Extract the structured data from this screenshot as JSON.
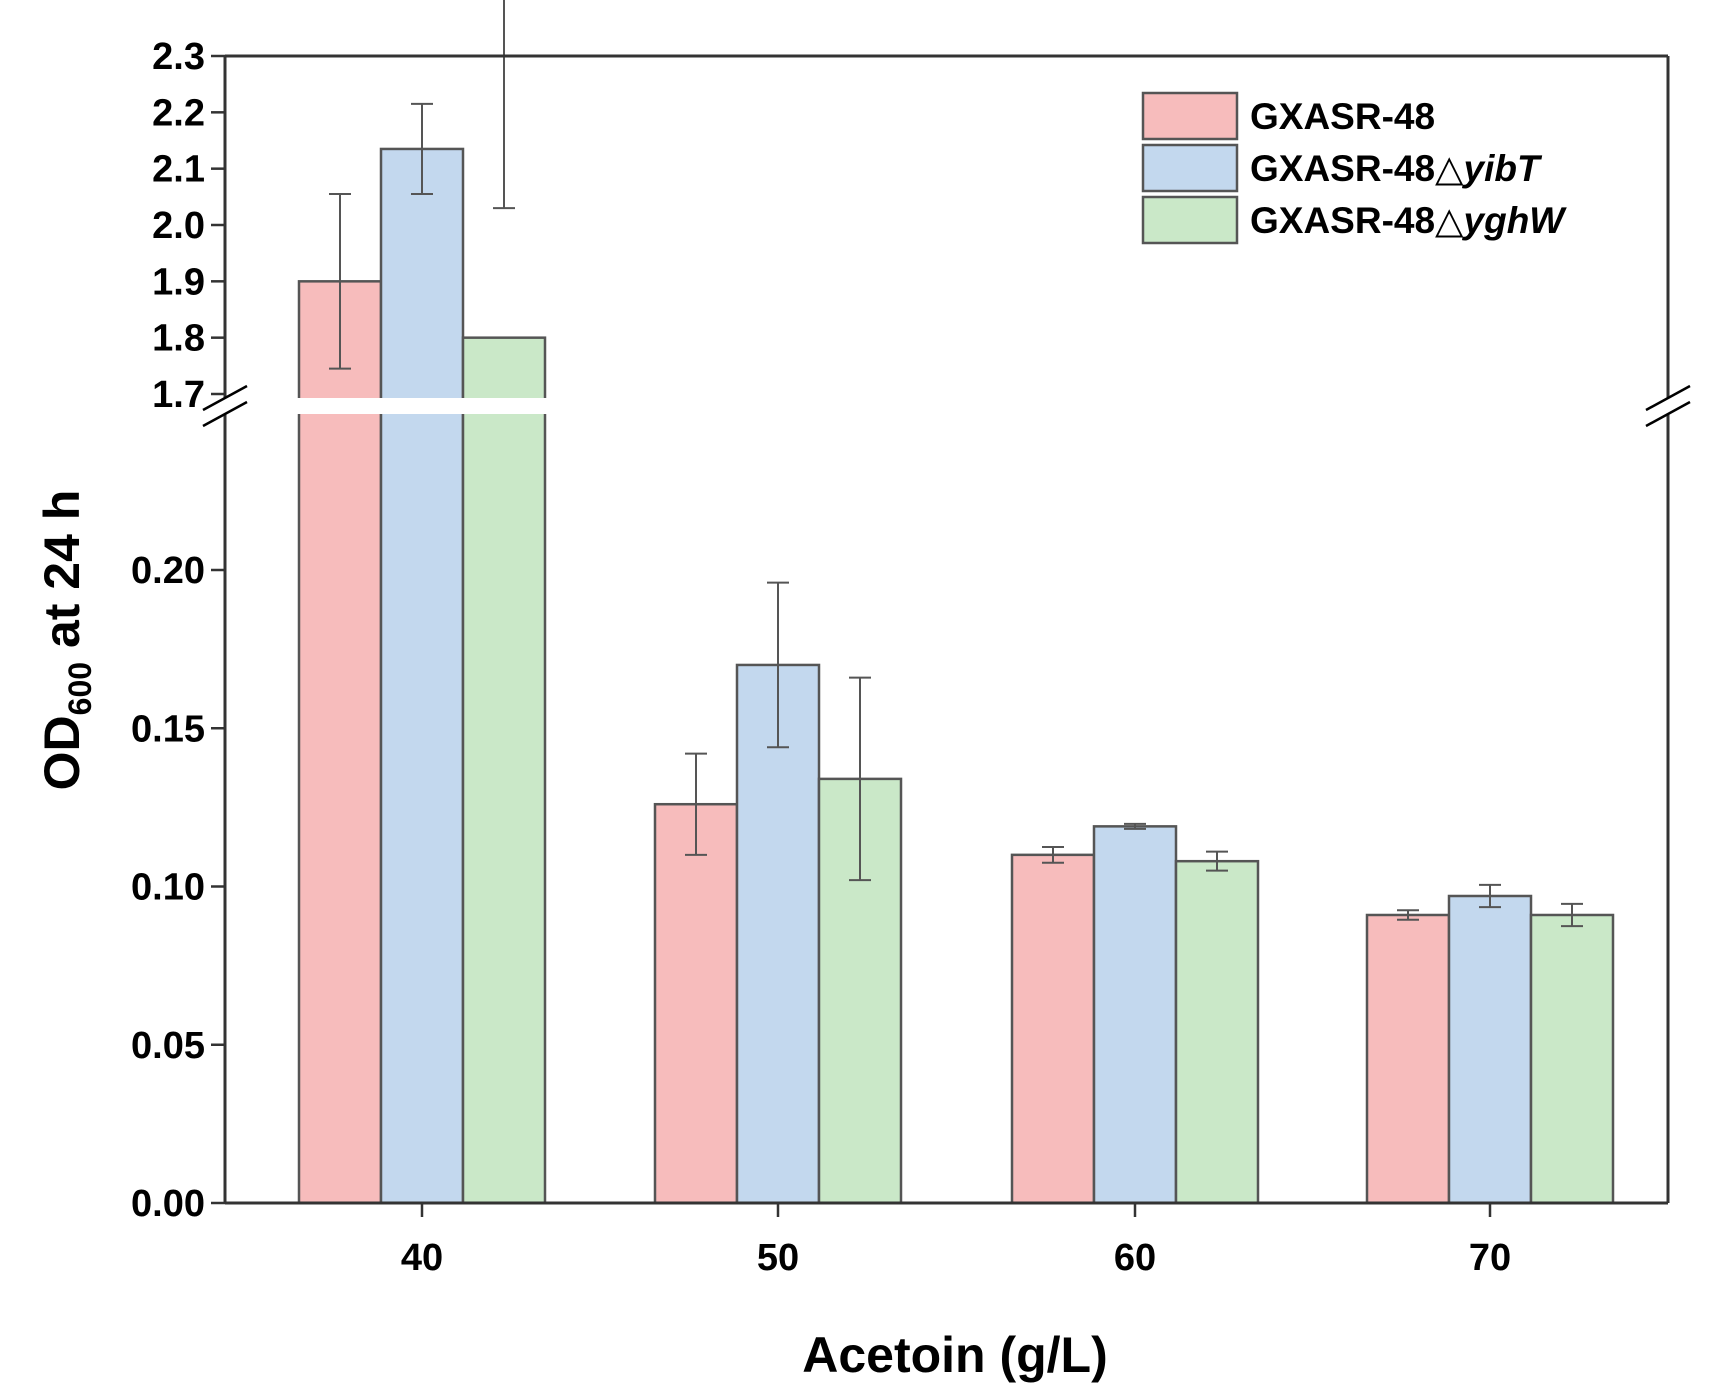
{
  "chart_data": {
    "type": "bar",
    "xlabel": "Acetoin (g/L)",
    "ylabel": {
      "base": "OD",
      "subscript": "600",
      "suffix": " at 24 h"
    },
    "categories": [
      "40",
      "50",
      "60",
      "70"
    ],
    "y_axis_break": {
      "lower_range": [
        0,
        0.25
      ],
      "upper_range": [
        1.7,
        2.3
      ]
    },
    "lower_ticks": [
      "0.00",
      "0.05",
      "0.10",
      "0.15",
      "0.20"
    ],
    "upper_ticks": [
      "1.7",
      "1.8",
      "1.9",
      "2.0",
      "2.1",
      "2.2",
      "2.3"
    ],
    "series": [
      {
        "name": "GXASR-48",
        "name_plain": "GXASR-48",
        "name_italic": "",
        "color": "#f7bcbc",
        "values": [
          1.9,
          0.126,
          0.11,
          0.091
        ],
        "errors": [
          0.155,
          0.016,
          0.0025,
          0.0015
        ]
      },
      {
        "name": "GXASR-48△yibT",
        "name_plain": "GXASR-48△",
        "name_italic": "yibT",
        "color": "#c3d8ee",
        "values": [
          2.135,
          0.17,
          0.119,
          0.097
        ],
        "errors": [
          0.08,
          0.026,
          0.0008,
          0.0035
        ]
      },
      {
        "name": "GXASR-48△yghW",
        "name_plain": "GXASR-48△",
        "name_italic": "yghW",
        "color": "#cae8c8",
        "values": [
          1.8,
          0.134,
          0.108,
          0.091
        ],
        "errors": [
          0.23,
          0.032,
          0.003,
          0.0035
        ]
      }
    ],
    "legend_position": "top-right",
    "colors": {
      "bar_stroke": "#555555",
      "error_bar": "#555555",
      "axis": "#333333"
    }
  }
}
